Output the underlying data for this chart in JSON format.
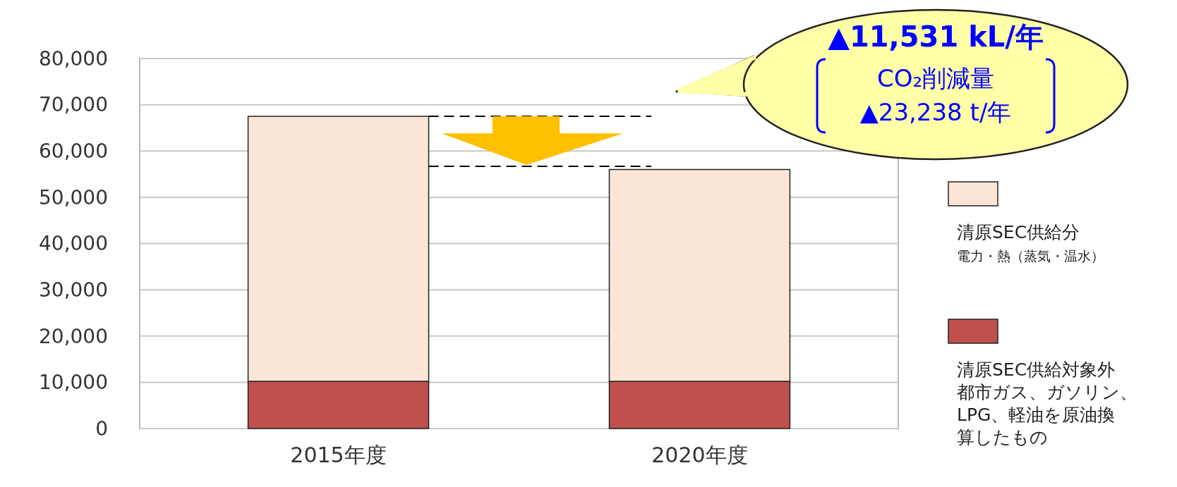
{
  "chart_data": {
    "type": "bar",
    "stacked": true,
    "categories": [
      "2015年度",
      "2020年度"
    ],
    "series": [
      {
        "name": "清原SEC供給対象外",
        "color": "#c0504d",
        "values": [
          10200,
          10200
        ]
      },
      {
        "name": "清原SEC供給分",
        "color": "#fbe5d6",
        "values": [
          57300,
          45800
        ]
      }
    ],
    "ylim": [
      0,
      80000
    ],
    "yticks": [
      {
        "value": 0,
        "label": "0"
      },
      {
        "value": 10000,
        "label": "10,000"
      },
      {
        "value": 20000,
        "label": "20,000"
      },
      {
        "value": 30000,
        "label": "30,000"
      },
      {
        "value": 40000,
        "label": "40,000"
      },
      {
        "value": 50000,
        "label": "50,000"
      },
      {
        "value": 60000,
        "label": "60,000"
      },
      {
        "value": 70000,
        "label": "70,000"
      },
      {
        "value": 80000,
        "label": "80,000"
      }
    ],
    "grid": "y",
    "legend": "right",
    "ref_lines": [
      {
        "axis": "y",
        "value": 67500,
        "color": "#000000",
        "line_style": "dashed"
      },
      {
        "axis": "y",
        "value": 56700,
        "color": "#000000",
        "line_style": "dashed"
      }
    ],
    "annotations": [
      "▲11,531 kL/年",
      "CO₂削減量",
      "▲23,238 t/年",
      "電力・熱（蒸気・温水）",
      "都市ガス、ガソリン、LPG、軽油を原油換算したもの"
    ]
  }
}
